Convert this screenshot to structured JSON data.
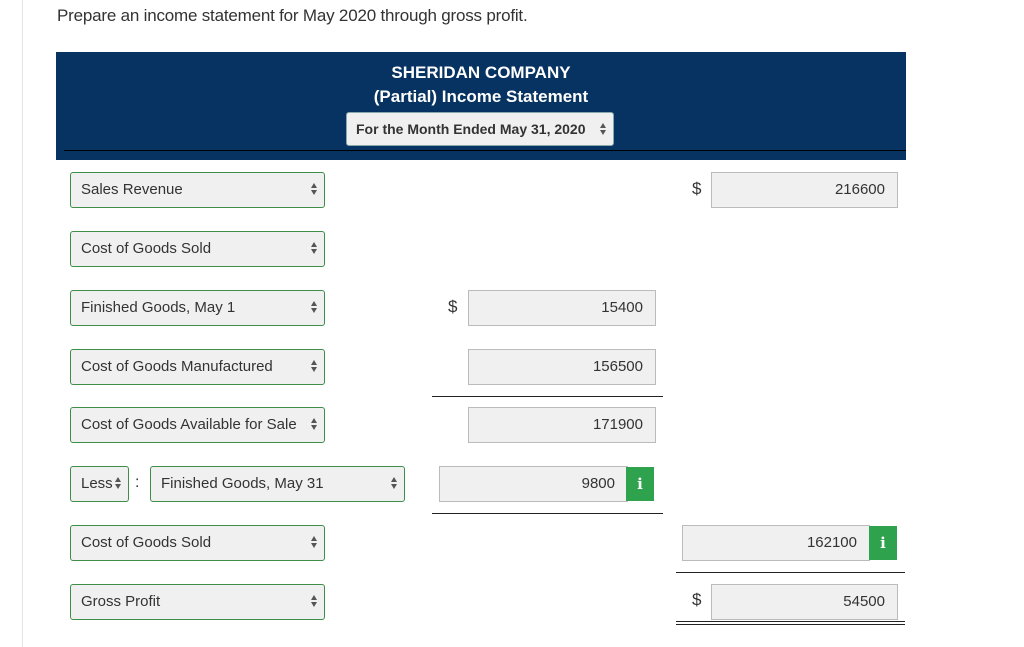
{
  "instruction": "Prepare an income statement for May 2020 through gross profit.",
  "header": {
    "company": "SHERIDAN COMPANY",
    "statement": "(Partial) Income Statement",
    "period": "For the Month Ended May 31, 2020"
  },
  "rows": [
    {
      "label": "Sales Revenue",
      "dollar": "$",
      "value": "216600"
    },
    {
      "label": "Cost of Goods Sold"
    },
    {
      "label": "Finished Goods, May 1",
      "dollar": "$",
      "value": "15400"
    },
    {
      "label": "Cost of Goods Manufactured",
      "value": "156500"
    },
    {
      "label": "Cost of Goods Available for Sale",
      "value": "171900"
    },
    {
      "prefix": "Less",
      "colon": ":",
      "label": "Finished Goods, May 31",
      "value": "9800",
      "info": "i"
    },
    {
      "label": "Cost of Goods Sold",
      "value": "162100",
      "info": "i"
    },
    {
      "label": "Gross Profit",
      "dollar": "$",
      "value": "54500"
    }
  ]
}
